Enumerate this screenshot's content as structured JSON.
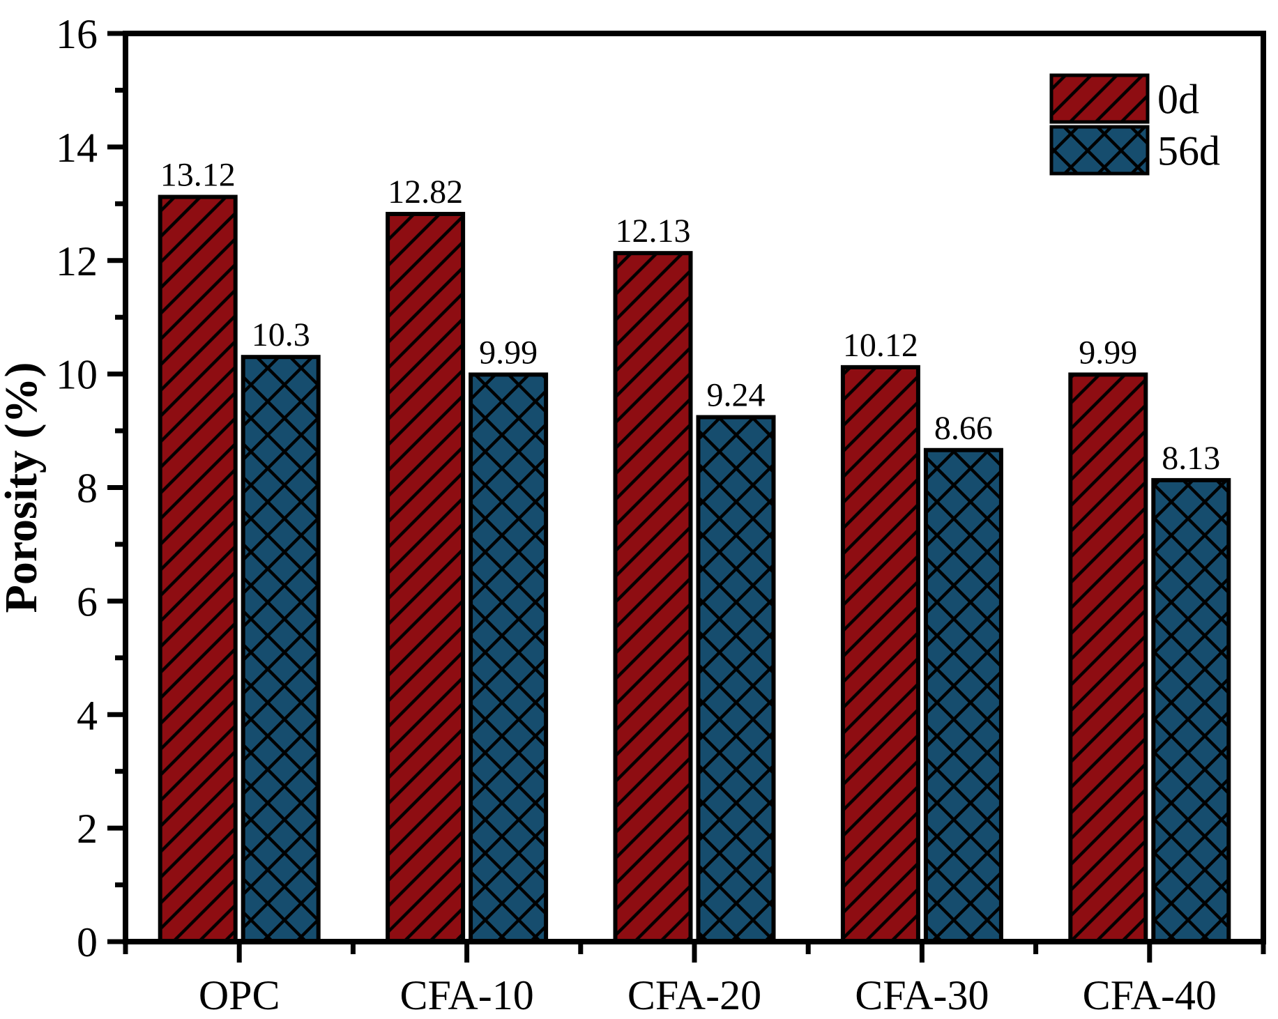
{
  "figure": {
    "background": "#ffffff",
    "axis_color": "#000000",
    "text_color": "#000000"
  },
  "chart_data": {
    "type": "bar",
    "title": "",
    "xlabel": "",
    "ylabel": "Porosity (%)",
    "categories": [
      "OPC",
      "CFA-10",
      "CFA-20",
      "CFA-30",
      "CFA-40"
    ],
    "series": [
      {
        "name": "0d",
        "values": [
          13.12,
          12.82,
          12.13,
          10.12,
          9.99
        ],
        "value_labels": [
          "13.12",
          "12.82",
          "12.13",
          "10.12",
          "9.99"
        ],
        "fill": "#8E0D12",
        "hatch": "diagonal",
        "hatch_color": "#000000"
      },
      {
        "name": "56d",
        "values": [
          10.3,
          9.99,
          9.24,
          8.66,
          8.13
        ],
        "value_labels": [
          "10.3",
          "9.99",
          "9.24",
          "8.66",
          "8.13"
        ],
        "fill": "#164D6E",
        "hatch": "crosshatch",
        "hatch_color": "#000000"
      }
    ],
    "ylim": [
      0,
      16
    ],
    "yticks": [
      0,
      2,
      4,
      6,
      8,
      10,
      12,
      14,
      16
    ],
    "ytick_labels": [
      "0",
      "2",
      "4",
      "6",
      "8",
      "10",
      "12",
      "14",
      "16"
    ],
    "yminor_step": 1,
    "grid": false,
    "bar_value_labels_shown": true,
    "legend": {
      "position": "top-right",
      "entries": [
        "0d",
        "56d"
      ]
    }
  }
}
